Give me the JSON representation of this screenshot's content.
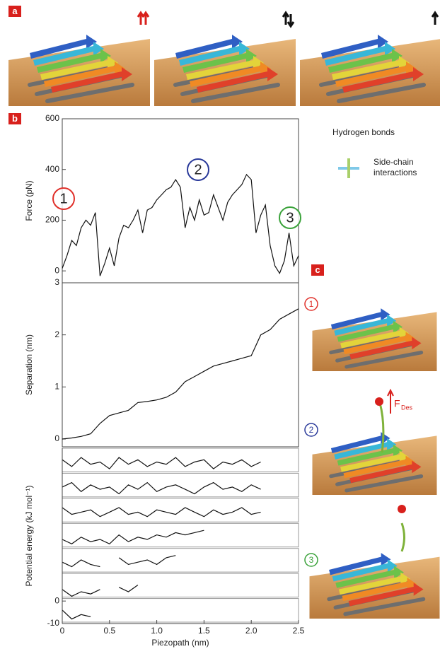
{
  "panels": [
    "a",
    "b",
    "c"
  ],
  "legend": {
    "hydrogen_bonds": "Hydrogen bonds",
    "side_chain": "Side-chain interactions"
  },
  "panel_c": {
    "labels": [
      {
        "text": "1",
        "color": "#e0302a"
      },
      {
        "text": "2",
        "color": "#2a3a9a"
      },
      {
        "text": "3",
        "color": "#3aa23a"
      }
    ],
    "force_symbol": "F",
    "force_subscript": "Des"
  },
  "chart_data": [
    {
      "type": "line",
      "y_label": "Force (pN)",
      "ylim": [
        -47,
        600
      ],
      "yticks": [
        0,
        200,
        400,
        600
      ],
      "xlim": [
        0,
        2.5
      ],
      "annotations": [
        {
          "text": "1",
          "color": "#e0302a"
        },
        {
          "text": "2",
          "color": "#2a3a9a"
        },
        {
          "text": "3",
          "color": "#3aa23a"
        }
      ],
      "x": [
        0,
        0.05,
        0.1,
        0.15,
        0.2,
        0.25,
        0.3,
        0.35,
        0.4,
        0.45,
        0.5,
        0.55,
        0.6,
        0.65,
        0.7,
        0.75,
        0.8,
        0.85,
        0.9,
        0.95,
        1.0,
        1.05,
        1.1,
        1.15,
        1.2,
        1.25,
        1.3,
        1.35,
        1.4,
        1.45,
        1.5,
        1.55,
        1.6,
        1.65,
        1.7,
        1.75,
        1.8,
        1.85,
        1.9,
        1.95,
        2.0,
        2.05,
        2.1,
        2.15,
        2.2,
        2.25,
        2.3,
        2.35,
        2.4,
        2.45,
        2.5
      ],
      "series": [
        {
          "color": "#111111",
          "values": [
            10,
            60,
            120,
            100,
            170,
            200,
            180,
            230,
            -20,
            30,
            90,
            20,
            130,
            180,
            170,
            200,
            240,
            150,
            240,
            250,
            280,
            300,
            320,
            330,
            360,
            330,
            170,
            250,
            200,
            280,
            220,
            230,
            300,
            250,
            200,
            270,
            300,
            320,
            340,
            380,
            360,
            150,
            220,
            260,
            100,
            20,
            -10,
            40,
            150,
            20,
            60
          ]
        }
      ]
    },
    {
      "type": "line",
      "y_label": "Separation (nm)",
      "ylim": [
        -0.15,
        3
      ],
      "yticks": [
        0,
        1,
        2,
        3
      ],
      "xlim": [
        0,
        2.5
      ],
      "x": [
        0,
        0.1,
        0.2,
        0.3,
        0.4,
        0.5,
        0.6,
        0.7,
        0.8,
        0.9,
        1.0,
        1.1,
        1.2,
        1.3,
        1.4,
        1.5,
        1.6,
        1.7,
        1.8,
        1.9,
        2.0,
        2.1,
        2.2,
        2.3,
        2.4,
        2.5
      ],
      "series": [
        {
          "color": "#111111",
          "values": [
            0,
            0.02,
            0.05,
            0.1,
            0.3,
            0.45,
            0.5,
            0.55,
            0.7,
            0.72,
            0.75,
            0.8,
            0.9,
            1.1,
            1.2,
            1.3,
            1.4,
            1.45,
            1.5,
            1.55,
            1.6,
            2.0,
            2.1,
            2.3,
            2.4,
            2.5
          ]
        }
      ]
    },
    {
      "type": "strips",
      "y_label": "Potential energy (kJ mol⁻¹)",
      "x_label": "Piezopath (nm)",
      "ylim": [
        -10,
        0.5
      ],
      "yticks": [
        0,
        -10
      ],
      "xlim": [
        0,
        2.5
      ],
      "xticks": [
        0,
        0.5,
        {
          "value": 1,
          "label": "1.0"
        },
        1.5,
        {
          "value": 2,
          "label": "2.0"
        },
        2.5
      ],
      "x": [
        0,
        0.1,
        0.2,
        0.3,
        0.4,
        0.5,
        0.6,
        0.7,
        0.8,
        0.9,
        1.0,
        1.1,
        1.2,
        1.3,
        1.4,
        1.5,
        1.6,
        1.7,
        1.8,
        1.9,
        2.0,
        2.1,
        2.2,
        2.3,
        2.4,
        2.5
      ],
      "series": [
        {
          "color": "#111111",
          "values": [
            -4,
            -7,
            -3,
            -6,
            -5,
            -8,
            -3,
            -6,
            -4,
            -7,
            -5,
            -6,
            -3,
            -7,
            -5,
            -4,
            -8,
            -5,
            -6,
            -4,
            -7,
            -5,
            null,
            null,
            null,
            null
          ]
        },
        {
          "color": "#111111",
          "values": [
            -5,
            -3,
            -7,
            -4,
            -6,
            -5,
            -8,
            -4,
            -6,
            -3,
            -7,
            -5,
            -4,
            -6,
            -8,
            -5,
            -3,
            -6,
            -5,
            -7,
            -4,
            -6,
            null,
            null,
            null,
            null
          ]
        },
        {
          "color": "#111111",
          "values": [
            -3,
            -6,
            -5,
            -4,
            -7,
            -5,
            -3,
            -6,
            -5,
            -7,
            -4,
            -5,
            -6,
            -3,
            -5,
            -7,
            -4,
            -6,
            -5,
            -3,
            -6,
            -5,
            null,
            null,
            null,
            null
          ]
        },
        {
          "color": "#111111",
          "values": [
            -6,
            -8,
            -5,
            -7,
            -6,
            -8,
            -4,
            -7,
            -5,
            -6,
            -4,
            -5,
            -3,
            -4,
            -3,
            -2,
            null,
            null,
            null,
            null,
            null,
            null,
            null,
            null,
            null,
            null
          ]
        },
        {
          "color": "#111111",
          "values": [
            -5,
            -7,
            -4,
            -6,
            -7,
            null,
            -3,
            -6,
            -5,
            -4,
            -6,
            -3,
            -2,
            null,
            null,
            null,
            null,
            null,
            null,
            null,
            null,
            null,
            null,
            null,
            null,
            null
          ]
        },
        {
          "color": "#111111",
          "values": [
            -6,
            -9,
            -7,
            -8,
            -6,
            null,
            -5,
            -7,
            -4,
            null,
            null,
            null,
            null,
            null,
            null,
            null,
            null,
            null,
            null,
            null,
            null,
            null,
            null,
            null,
            null,
            null
          ]
        },
        {
          "color": "#111111",
          "values": [
            -4,
            -8,
            -6,
            -7,
            null,
            null,
            null,
            null,
            null,
            null,
            null,
            null,
            null,
            null,
            null,
            null,
            null,
            null,
            null,
            null,
            null,
            null,
            null,
            null,
            null,
            null
          ]
        }
      ]
    }
  ]
}
